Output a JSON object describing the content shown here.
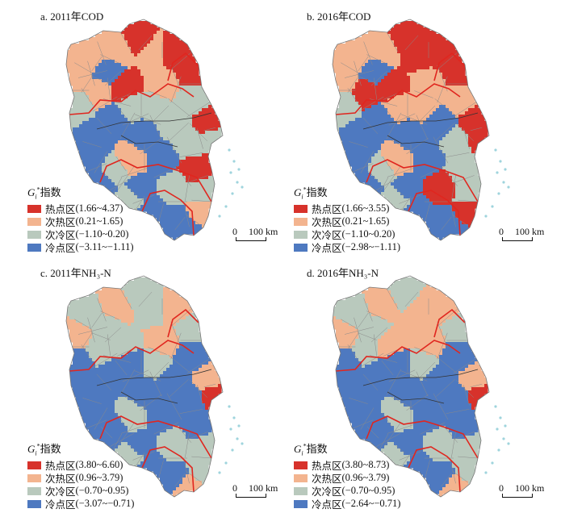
{
  "colors": {
    "hot": "#d7322b",
    "subhot": "#f3b48f",
    "subcold": "#b9c9bd",
    "cold": "#4e79c0",
    "boundary_red": "#e0261f",
    "sea_dots": "#9fd4dd"
  },
  "common": {
    "gi_symbol": "G",
    "gi_sub": "i",
    "gi_sup": "*",
    "gi_suffix": "指数",
    "scale_zero": "0",
    "scale_label": "100 km"
  },
  "panels": [
    {
      "title": "a. 2011年COD",
      "legend": [
        {
          "name": "热点区",
          "range": "(1.66~4.37)",
          "cls": "hot"
        },
        {
          "name": "次热区",
          "range": "(0.21~1.65)",
          "cls": "subhot"
        },
        {
          "name": "次冷区",
          "range": "(−1.10~0.20)",
          "cls": "subcold"
        },
        {
          "name": "冷点区",
          "range": "(−3.11~−1.11)",
          "cls": "cold"
        }
      ],
      "regions": [
        "hot",
        "hot",
        "subhot",
        "hot",
        "subhot",
        "subhot",
        "cold",
        "subhot",
        "hot",
        "subhot",
        "subcold",
        "subhot",
        "subcold",
        "subcold",
        "cold",
        "cold",
        "subcold",
        "hot",
        "subcold",
        "cold",
        "cold",
        "subcold",
        "hot",
        "subcold",
        "subhot",
        "cold",
        "subcold",
        "cold",
        "cold",
        "subcold",
        "subcold",
        "cold",
        "cold",
        "subhot",
        "cold",
        "subcold"
      ]
    },
    {
      "title": "b. 2016年COD",
      "legend": [
        {
          "name": "热点区",
          "range": "(1.66~3.55)",
          "cls": "hot"
        },
        {
          "name": "次热区",
          "range": "(0.21~1.65)",
          "cls": "subhot"
        },
        {
          "name": "次冷区",
          "range": "(−1.10~0.20)",
          "cls": "subcold"
        },
        {
          "name": "冷点区",
          "range": "(−2.98~−1.11)",
          "cls": "cold"
        }
      ],
      "regions": [
        "hot",
        "hot",
        "hot",
        "hot",
        "subhot",
        "subhot",
        "cold",
        "subhot",
        "hot",
        "subhot",
        "subhot",
        "hot",
        "subhot",
        "subcold",
        "cold",
        "cold",
        "subhot",
        "hot",
        "cold",
        "cold",
        "cold",
        "subcold",
        "subcold",
        "hot",
        "subhot",
        "cold",
        "subcold",
        "cold",
        "cold",
        "hot",
        "subcold",
        "cold",
        "cold",
        "hot",
        "cold",
        "subcold"
      ]
    },
    {
      "title": "c. 2011年NH₃-N",
      "legend": [
        {
          "name": "热点区",
          "range": "(3.80~6.60)",
          "cls": "hot"
        },
        {
          "name": "次热区",
          "range": "(0.96~3.79)",
          "cls": "subhot"
        },
        {
          "name": "次冷区",
          "range": "(−0.70~0.95)",
          "cls": "subcold"
        },
        {
          "name": "冷点区",
          "range": "(−3.07~−0.71)",
          "cls": "cold"
        }
      ],
      "regions": [
        "subcold",
        "subhot",
        "subcold",
        "subcold",
        "subhot",
        "subcold",
        "subcold",
        "subhot",
        "subcold",
        "subhot",
        "cold",
        "subcold",
        "cold",
        "cold",
        "cold",
        "cold",
        "subcold",
        "subhot",
        "cold",
        "cold",
        "cold",
        "cold",
        "cold",
        "hot",
        "subcold",
        "cold",
        "cold",
        "cold",
        "cold",
        "subcold",
        "subcold",
        "cold",
        "cold",
        "subcold",
        "subhot",
        "subcold"
      ]
    },
    {
      "title": "d. 2016年NH₃-N",
      "legend": [
        {
          "name": "热点区",
          "range": "(3.80~8.73)",
          "cls": "hot"
        },
        {
          "name": "次热区",
          "range": "(0.96~3.79)",
          "cls": "subhot"
        },
        {
          "name": "次冷区",
          "range": "(−0.70~0.95)",
          "cls": "subcold"
        },
        {
          "name": "冷点区",
          "range": "(−2.64~−0.71)",
          "cls": "cold"
        }
      ],
      "regions": [
        "subcold",
        "subhot",
        "subhot",
        "subcold",
        "subhot",
        "subcold",
        "subcold",
        "subhot",
        "subhot",
        "subhot",
        "cold",
        "subcold",
        "cold",
        "cold",
        "cold",
        "cold",
        "subcold",
        "subhot",
        "cold",
        "cold",
        "cold",
        "cold",
        "cold",
        "hot",
        "subcold",
        "cold",
        "cold",
        "cold",
        "cold",
        "subcold",
        "subcold",
        "cold",
        "cold",
        "subcold",
        "subhot",
        "subcold"
      ]
    }
  ]
}
